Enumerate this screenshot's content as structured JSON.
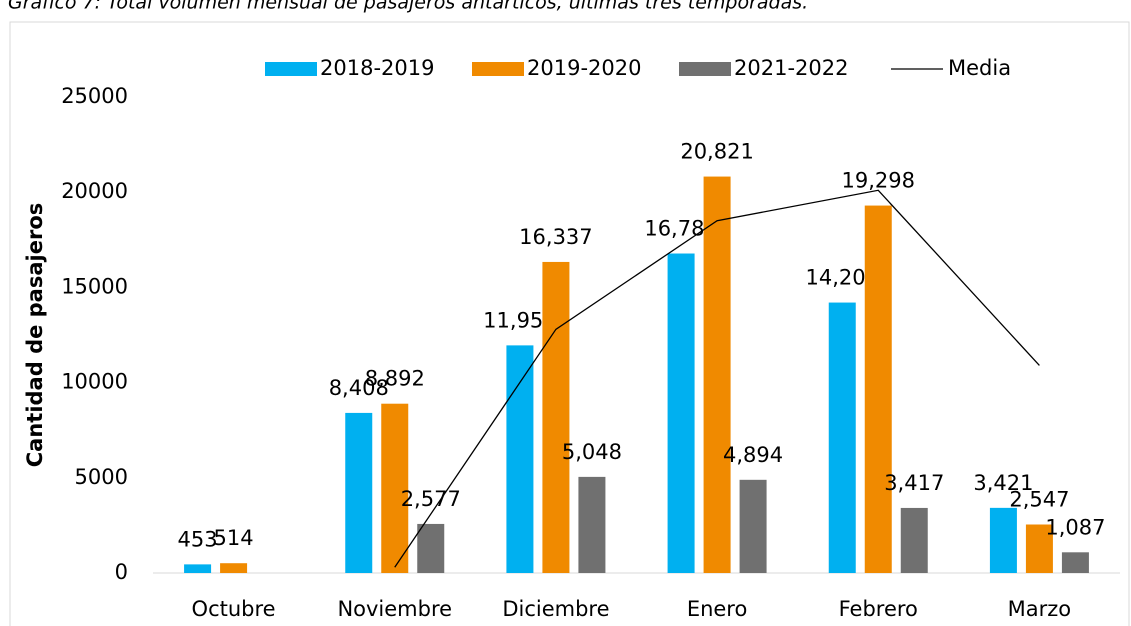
{
  "chart_data": {
    "type": "bar",
    "title": "Gráfico 7: Total volumen mensual de pasajeros antárticos, últimas tres temporadas.",
    "y_label": "Cantidad de pasajeros",
    "categories": [
      "Octubre",
      "Noviembre",
      "Diciembre",
      "Enero",
      "Febrero",
      "Marzo"
    ],
    "series": [
      {
        "name": "2018-2019",
        "color": "#00b0f0",
        "values": [
          453,
          8408,
          11955,
          16780,
          14204,
          3421
        ],
        "value_labels": [
          "453",
          "8,408",
          "11,955",
          "16,780",
          "14,204",
          "3,421"
        ]
      },
      {
        "name": "2019-2020",
        "color": "#f08a00",
        "values": [
          514,
          8892,
          16337,
          20821,
          19298,
          2547
        ],
        "value_labels": [
          "514",
          "8,892",
          "16,337",
          "20,821",
          "19,298",
          "2,547"
        ]
      },
      {
        "name": "2021-2022",
        "color": "#707070",
        "values": [
          null,
          2577,
          5048,
          4894,
          3417,
          1087
        ],
        "value_labels": [
          null,
          "2,577",
          "5,048",
          "4,894",
          "3,417",
          "1,087"
        ]
      },
      {
        "name": "Media",
        "type": "line",
        "color": "#000000",
        "values": [
          null,
          300,
          12800,
          18500,
          20100,
          10900
        ]
      }
    ],
    "ylim": [
      0,
      25000
    ],
    "yticks": [
      0,
      5000,
      10000,
      15000,
      20000,
      25000
    ],
    "grid": false,
    "legend": "top"
  }
}
